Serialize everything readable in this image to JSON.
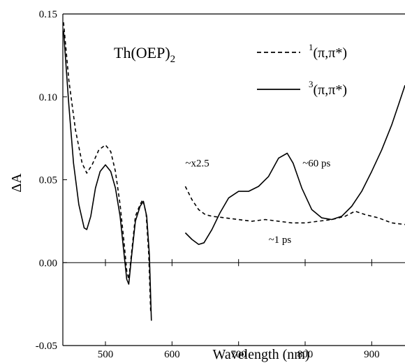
{
  "chart_data": {
    "type": "line",
    "title": "",
    "xlabel": "Wavelength (nm)",
    "ylabel": "ΔA",
    "xlim": [
      436,
      950
    ],
    "ylim": [
      -0.05,
      0.15
    ],
    "xticks": [
      500,
      600,
      700,
      800,
      900
    ],
    "xtick_labels": [
      "500",
      "600",
      "700",
      "800",
      "900"
    ],
    "yticks": [
      -0.05,
      0.0,
      0.05,
      0.1,
      0.15
    ],
    "ytick_labels": [
      "-0.05",
      "0.00",
      "0.05",
      "0.10",
      "0.15"
    ],
    "compound_label": {
      "main": "Th(OEP)",
      "sub": "2"
    },
    "grid": false,
    "legend_position": "top-right",
    "series": [
      {
        "name": "1(π,π*)",
        "legend_sup": "1",
        "legend_main": "(π,π*)",
        "style": "dashed",
        "color": "#000000",
        "segments": [
          [
            [
              437,
              0.145
            ],
            [
              445,
              0.11
            ],
            [
              455,
              0.08
            ],
            [
              465,
              0.06
            ],
            [
              472,
              0.054
            ],
            [
              480,
              0.059
            ],
            [
              490,
              0.068
            ],
            [
              500,
              0.071
            ],
            [
              508,
              0.067
            ],
            [
              515,
              0.055
            ],
            [
              522,
              0.035
            ],
            [
              528,
              0.012
            ],
            [
              532,
              -0.005
            ],
            [
              535,
              -0.01
            ],
            [
              539,
              0.005
            ],
            [
              545,
              0.028
            ],
            [
              552,
              0.035
            ],
            [
              556,
              0.038
            ],
            [
              561,
              0.03
            ],
            [
              565,
              0.005
            ],
            [
              568,
              -0.03
            ]
          ],
          [
            [
              620,
              0.046
            ],
            [
              630,
              0.038
            ],
            [
              640,
              0.032
            ],
            [
              650,
              0.029
            ],
            [
              660,
              0.028
            ],
            [
              680,
              0.027
            ],
            [
              700,
              0.026
            ],
            [
              720,
              0.025
            ],
            [
              740,
              0.026
            ],
            [
              760,
              0.025
            ],
            [
              780,
              0.024
            ],
            [
              800,
              0.024
            ],
            [
              820,
              0.025
            ],
            [
              840,
              0.026
            ],
            [
              860,
              0.028
            ],
            [
              875,
              0.031
            ],
            [
              890,
              0.029
            ],
            [
              910,
              0.027
            ],
            [
              930,
              0.024
            ],
            [
              950,
              0.023
            ]
          ]
        ]
      },
      {
        "name": "3(π,π*)",
        "legend_sup": "3",
        "legend_main": "(π,π*)",
        "style": "solid",
        "color": "#000000",
        "segments": [
          [
            [
              437,
              0.14
            ],
            [
              445,
              0.095
            ],
            [
              452,
              0.06
            ],
            [
              460,
              0.035
            ],
            [
              468,
              0.021
            ],
            [
              472,
              0.02
            ],
            [
              478,
              0.028
            ],
            [
              485,
              0.045
            ],
            [
              492,
              0.055
            ],
            [
              500,
              0.059
            ],
            [
              508,
              0.055
            ],
            [
              515,
              0.045
            ],
            [
              522,
              0.028
            ],
            [
              528,
              0.005
            ],
            [
              532,
              -0.01
            ],
            [
              535,
              -0.013
            ],
            [
              539,
              0.003
            ],
            [
              545,
              0.025
            ],
            [
              552,
              0.034
            ],
            [
              557,
              0.037
            ],
            [
              562,
              0.028
            ],
            [
              566,
              0.005
            ],
            [
              569,
              -0.035
            ]
          ],
          [
            [
              620,
              0.018
            ],
            [
              630,
              0.014
            ],
            [
              640,
              0.011
            ],
            [
              648,
              0.012
            ],
            [
              660,
              0.02
            ],
            [
              672,
              0.03
            ],
            [
              685,
              0.039
            ],
            [
              700,
              0.043
            ],
            [
              715,
              0.043
            ],
            [
              730,
              0.046
            ],
            [
              745,
              0.052
            ],
            [
              760,
              0.063
            ],
            [
              773,
              0.066
            ],
            [
              782,
              0.06
            ],
            [
              795,
              0.045
            ],
            [
              810,
              0.032
            ],
            [
              825,
              0.027
            ],
            [
              840,
              0.026
            ],
            [
              855,
              0.028
            ],
            [
              870,
              0.034
            ],
            [
              885,
              0.043
            ],
            [
              900,
              0.055
            ],
            [
              915,
              0.068
            ],
            [
              930,
              0.083
            ],
            [
              940,
              0.095
            ],
            [
              950,
              0.107
            ]
          ]
        ]
      }
    ],
    "annotations": [
      {
        "text": "~x2.5",
        "x": 620,
        "y": 0.058
      },
      {
        "text": "~60 ps",
        "x": 796,
        "y": 0.058
      },
      {
        "text": "~1 ps",
        "x": 745,
        "y": 0.012
      }
    ]
  }
}
